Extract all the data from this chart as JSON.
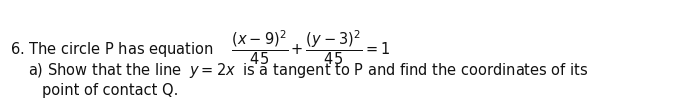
{
  "background_color": "#ffffff",
  "text_color": "#111111",
  "figsize": [
    6.8,
    1.01
  ],
  "dpi": 100,
  "font_size": 10.5,
  "line1": "6. The circle P has equation $\\quad\\dfrac{(x-9)^{2}}{45}+\\dfrac{(y-3)^{2}}{45}=1$",
  "line2": "a) Show that the line $\\;y=2x\\;$ is a tangent to P and find the coordinates of its",
  "line3": "point of contact Q."
}
